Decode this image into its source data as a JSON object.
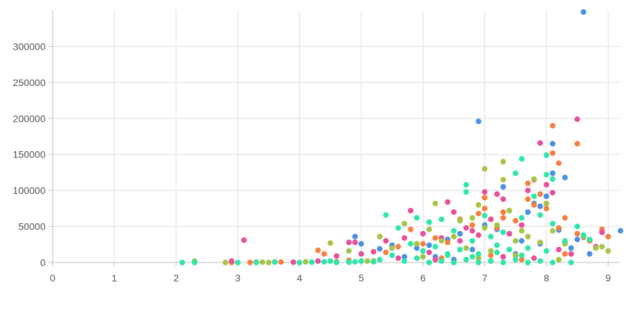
{
  "chart_data": {
    "type": "scatter",
    "title": "",
    "xlabel": "",
    "ylabel": "",
    "xlim": [
      0,
      9.2
    ],
    "ylim": [
      0,
      350000
    ],
    "x_ticks": [
      0,
      1,
      2,
      3,
      4,
      5,
      6,
      7,
      8,
      9
    ],
    "y_ticks": [
      0,
      50000,
      100000,
      150000,
      200000,
      250000,
      300000
    ],
    "grid": true,
    "legend": "none",
    "colors": [
      "#4a90e2",
      "#f5803e",
      "#e84f9a",
      "#a6c448",
      "#2ee6a8"
    ],
    "series": [
      {
        "color": "#4a90e2",
        "points": [
          [
            4.9,
            36000
          ],
          [
            5.0,
            26000
          ],
          [
            5.3,
            19000
          ],
          [
            5.5,
            24000
          ],
          [
            5.9,
            20000
          ],
          [
            6.1,
            24000
          ],
          [
            6.4,
            32000
          ],
          [
            6.6,
            40000
          ],
          [
            6.8,
            18000
          ],
          [
            6.9,
            196000
          ],
          [
            7.0,
            52000
          ],
          [
            7.2,
            46000
          ],
          [
            7.3,
            105000
          ],
          [
            7.4,
            40000
          ],
          [
            7.6,
            30000
          ],
          [
            7.7,
            70000
          ],
          [
            7.8,
            82000
          ],
          [
            7.9,
            78000
          ],
          [
            8.0,
            92000
          ],
          [
            8.1,
            165000
          ],
          [
            8.1,
            124000
          ],
          [
            8.2,
            45000
          ],
          [
            8.3,
            118000
          ],
          [
            8.5,
            32000
          ],
          [
            8.6,
            348000
          ],
          [
            8.7,
            12000
          ],
          [
            8.9,
            42000
          ],
          [
            9.2,
            44000
          ],
          [
            6.2,
            8000
          ],
          [
            6.9,
            6000
          ],
          [
            7.5,
            12000
          ],
          [
            7.9,
            26000
          ],
          [
            5.7,
            8000
          ],
          [
            6.5,
            4000
          ],
          [
            7.1,
            2000
          ],
          [
            8.4,
            20000
          ]
        ]
      },
      {
        "color": "#f5803e",
        "points": [
          [
            2.9,
            0
          ],
          [
            3.2,
            0
          ],
          [
            3.3,
            500
          ],
          [
            3.7,
            800
          ],
          [
            4.3,
            17000
          ],
          [
            4.4,
            12000
          ],
          [
            4.8,
            3000
          ],
          [
            5.4,
            14000
          ],
          [
            5.6,
            22000
          ],
          [
            5.8,
            46000
          ],
          [
            6.0,
            26000
          ],
          [
            6.2,
            34000
          ],
          [
            6.4,
            28000
          ],
          [
            6.6,
            60000
          ],
          [
            6.8,
            52000
          ],
          [
            6.9,
            68000
          ],
          [
            7.0,
            75000
          ],
          [
            7.0,
            90000
          ],
          [
            7.2,
            48000
          ],
          [
            7.3,
            62000
          ],
          [
            7.3,
            70000
          ],
          [
            7.5,
            58000
          ],
          [
            7.7,
            110000
          ],
          [
            7.7,
            88000
          ],
          [
            7.8,
            80000
          ],
          [
            7.9,
            95000
          ],
          [
            8.0,
            75000
          ],
          [
            8.1,
            190000
          ],
          [
            8.1,
            152000
          ],
          [
            8.2,
            138000
          ],
          [
            8.2,
            48000
          ],
          [
            8.3,
            62000
          ],
          [
            8.5,
            165000
          ],
          [
            8.5,
            40000
          ],
          [
            8.7,
            30000
          ],
          [
            8.9,
            46000
          ],
          [
            9.0,
            36000
          ],
          [
            8.3,
            12000
          ],
          [
            6.3,
            6000
          ],
          [
            7.1,
            10000
          ],
          [
            7.6,
            4000
          ],
          [
            5.2,
            2000
          ],
          [
            4.6,
            1000
          ]
        ]
      },
      {
        "color": "#e84f9a",
        "points": [
          [
            2.9,
            2000
          ],
          [
            3.1,
            31000
          ],
          [
            3.6,
            800
          ],
          [
            4.6,
            9000
          ],
          [
            4.8,
            28000
          ],
          [
            4.9,
            28000
          ],
          [
            5.0,
            12000
          ],
          [
            5.2,
            15000
          ],
          [
            5.4,
            30000
          ],
          [
            5.7,
            34000
          ],
          [
            5.8,
            72000
          ],
          [
            6.0,
            40000
          ],
          [
            6.1,
            14000
          ],
          [
            6.3,
            34000
          ],
          [
            6.4,
            84000
          ],
          [
            6.5,
            70000
          ],
          [
            6.6,
            30000
          ],
          [
            6.7,
            48000
          ],
          [
            6.8,
            44000
          ],
          [
            6.9,
            38000
          ],
          [
            7.0,
            98000
          ],
          [
            7.1,
            60000
          ],
          [
            7.2,
            95000
          ],
          [
            7.3,
            88000
          ],
          [
            7.4,
            40000
          ],
          [
            7.6,
            52000
          ],
          [
            7.7,
            100000
          ],
          [
            7.8,
            115000
          ],
          [
            7.9,
            166000
          ],
          [
            8.0,
            108000
          ],
          [
            8.0,
            82000
          ],
          [
            8.1,
            97000
          ],
          [
            8.2,
            18000
          ],
          [
            8.3,
            28000
          ],
          [
            8.4,
            12000
          ],
          [
            8.5,
            199000
          ],
          [
            8.6,
            35000
          ],
          [
            8.8,
            22000
          ],
          [
            8.9,
            42000
          ],
          [
            5.6,
            6000
          ],
          [
            6.2,
            4000
          ],
          [
            7.3,
            8000
          ],
          [
            7.8,
            6000
          ],
          [
            4.3,
            2000
          ],
          [
            3.9,
            500
          ]
        ]
      },
      {
        "color": "#a6c448",
        "points": [
          [
            2.3,
            2000
          ],
          [
            2.8,
            0
          ],
          [
            3.4,
            500
          ],
          [
            3.5,
            0
          ],
          [
            4.5,
            27000
          ],
          [
            4.8,
            16000
          ],
          [
            5.3,
            36000
          ],
          [
            5.5,
            20000
          ],
          [
            5.7,
            54000
          ],
          [
            5.9,
            26000
          ],
          [
            6.1,
            46000
          ],
          [
            6.2,
            82000
          ],
          [
            6.3,
            30000
          ],
          [
            6.5,
            36000
          ],
          [
            6.6,
            58000
          ],
          [
            6.7,
            20000
          ],
          [
            6.8,
            62000
          ],
          [
            6.9,
            80000
          ],
          [
            7.0,
            130000
          ],
          [
            7.0,
            48000
          ],
          [
            7.1,
            16000
          ],
          [
            7.2,
            52000
          ],
          [
            7.3,
            140000
          ],
          [
            7.3,
            115000
          ],
          [
            7.4,
            72000
          ],
          [
            7.5,
            30000
          ],
          [
            7.6,
            44000
          ],
          [
            7.7,
            36000
          ],
          [
            7.8,
            116000
          ],
          [
            7.9,
            28000
          ],
          [
            8.0,
            82000
          ],
          [
            8.1,
            44000
          ],
          [
            8.3,
            26000
          ],
          [
            8.6,
            36000
          ],
          [
            8.8,
            20000
          ],
          [
            8.9,
            22000
          ],
          [
            9.0,
            16000
          ],
          [
            6.0,
            8000
          ],
          [
            6.9,
            6000
          ],
          [
            7.5,
            10000
          ],
          [
            8.2,
            4000
          ],
          [
            5.1,
            2000
          ],
          [
            4.1,
            1000
          ]
        ]
      },
      {
        "color": "#2ee6a8",
        "points": [
          [
            2.1,
            0
          ],
          [
            2.3,
            0
          ],
          [
            3.0,
            0
          ],
          [
            3.3,
            0
          ],
          [
            3.6,
            500
          ],
          [
            4.0,
            0
          ],
          [
            4.2,
            500
          ],
          [
            4.4,
            1000
          ],
          [
            4.6,
            0
          ],
          [
            4.8,
            500
          ],
          [
            5.0,
            2000
          ],
          [
            5.2,
            1000
          ],
          [
            5.4,
            66000
          ],
          [
            5.5,
            10000
          ],
          [
            5.6,
            48000
          ],
          [
            5.8,
            26000
          ],
          [
            5.9,
            62000
          ],
          [
            6.0,
            16000
          ],
          [
            6.1,
            56000
          ],
          [
            6.2,
            22000
          ],
          [
            6.3,
            60000
          ],
          [
            6.4,
            10000
          ],
          [
            6.5,
            44000
          ],
          [
            6.6,
            18000
          ],
          [
            6.7,
            108000
          ],
          [
            6.7,
            98000
          ],
          [
            6.8,
            30000
          ],
          [
            6.9,
            12000
          ],
          [
            7.0,
            65000
          ],
          [
            7.1,
            36000
          ],
          [
            7.2,
            24000
          ],
          [
            7.3,
            42000
          ],
          [
            7.4,
            18000
          ],
          [
            7.5,
            124000
          ],
          [
            7.6,
            144000
          ],
          [
            7.6,
            62000
          ],
          [
            7.7,
            20000
          ],
          [
            7.8,
            92000
          ],
          [
            7.9,
            66000
          ],
          [
            8.0,
            149000
          ],
          [
            8.0,
            122000
          ],
          [
            8.1,
            116000
          ],
          [
            8.1,
            54000
          ],
          [
            8.3,
            30000
          ],
          [
            8.4,
            0
          ],
          [
            8.5,
            50000
          ],
          [
            8.6,
            38000
          ],
          [
            8.7,
            32000
          ],
          [
            5.3,
            4000
          ],
          [
            5.7,
            2000
          ],
          [
            6.1,
            0
          ],
          [
            6.3,
            2000
          ],
          [
            6.5,
            0
          ],
          [
            6.7,
            4000
          ],
          [
            6.9,
            0
          ],
          [
            7.1,
            2000
          ],
          [
            7.3,
            0
          ],
          [
            7.5,
            4000
          ],
          [
            7.7,
            0
          ],
          [
            7.9,
            2000
          ],
          [
            8.1,
            0
          ],
          [
            5.9,
            6000
          ],
          [
            6.4,
            12000
          ],
          [
            6.8,
            8000
          ],
          [
            7.2,
            14000
          ],
          [
            7.6,
            10000
          ],
          [
            8.0,
            16000
          ],
          [
            4.5,
            2000
          ],
          [
            4.9,
            1000
          ]
        ]
      }
    ]
  }
}
